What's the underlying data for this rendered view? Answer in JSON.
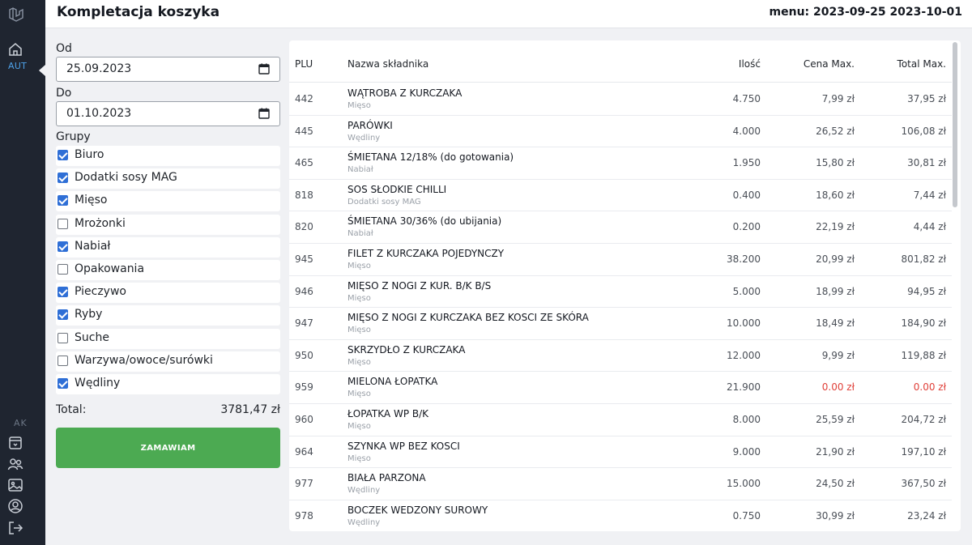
{
  "sidebar": {
    "top_section": "AUT",
    "bottom_section": "AK",
    "icons": [
      "logo-icon",
      "home-icon",
      "archive-icon",
      "users-icon",
      "image-icon",
      "profile-icon",
      "logout-icon"
    ]
  },
  "header": {
    "title": "Kompletacja koszyka",
    "menu_range": "menu: 2023-09-25 2023-10-01"
  },
  "filters": {
    "from_label": "Od",
    "from_value": "25.09.2023",
    "to_label": "Do",
    "to_value": "01.10.2023",
    "groups_label": "Grupy",
    "groups": [
      {
        "label": "Biuro",
        "checked": true
      },
      {
        "label": "Dodatki sosy MAG",
        "checked": true
      },
      {
        "label": "Mięso",
        "checked": true
      },
      {
        "label": "Mrożonki",
        "checked": false
      },
      {
        "label": "Nabiał",
        "checked": true
      },
      {
        "label": "Opakowania",
        "checked": false
      },
      {
        "label": "Pieczywo",
        "checked": true
      },
      {
        "label": "Ryby",
        "checked": true
      },
      {
        "label": "Suche",
        "checked": false
      },
      {
        "label": "Warzywa/owoce/surówki",
        "checked": false
      },
      {
        "label": "Wędliny",
        "checked": true
      }
    ],
    "total_label": "Total:",
    "total_value": "3781,47 zł",
    "order_button": "ZAMAWIAM"
  },
  "table": {
    "headers": {
      "plu": "PLU",
      "name": "Nazwa składnika",
      "qty": "Ilość",
      "price": "Cena Max.",
      "total": "Total Max."
    },
    "rows": [
      {
        "plu": "442",
        "name": "WĄTROBA Z KURCZAKA",
        "group": "Mięso",
        "qty": "4.750",
        "price": "7,99 zł",
        "total": "37,95 zł"
      },
      {
        "plu": "445",
        "name": "PARÓWKI",
        "group": "Wędliny",
        "qty": "4.000",
        "price": "26,52 zł",
        "total": "106,08 zł"
      },
      {
        "plu": "465",
        "name": "ŚMIETANA 12/18% (do gotowania)",
        "group": "Nabiał",
        "qty": "1.950",
        "price": "15,80 zł",
        "total": "30,81 zł"
      },
      {
        "plu": "818",
        "name": "SOS SŁODKIE CHILLI",
        "group": "Dodatki sosy MAG",
        "qty": "0.400",
        "price": "18,60 zł",
        "total": "7,44 zł"
      },
      {
        "plu": "820",
        "name": "ŚMIETANA 30/36% (do ubijania)",
        "group": "Nabiał",
        "qty": "0.200",
        "price": "22,19 zł",
        "total": "4,44 zł"
      },
      {
        "plu": "945",
        "name": "FILET Z KURCZAKA POJEDYNCZY",
        "group": "Mięso",
        "qty": "38.200",
        "price": "20,99 zł",
        "total": "801,82 zł"
      },
      {
        "plu": "946",
        "name": "MIĘSO Z NOGI Z KUR. B/K B/S",
        "group": "Mięso",
        "qty": "5.000",
        "price": "18,99 zł",
        "total": "94,95 zł"
      },
      {
        "plu": "947",
        "name": "MIĘSO Z NOGI Z KURCZAKA BEZ KOSCI ZE SKÓRA",
        "group": "Mięso",
        "qty": "10.000",
        "price": "18,49 zł",
        "total": "184,90 zł"
      },
      {
        "plu": "950",
        "name": "SKRZYDŁO Z KURCZAKA",
        "group": "Mięso",
        "qty": "12.000",
        "price": "9,99 zł",
        "total": "119,88 zł"
      },
      {
        "plu": "959",
        "name": "MIELONA ŁOPATKA",
        "group": "Mięso",
        "qty": "21.900",
        "price": "0.00 zł",
        "total": "0.00 zł",
        "zero": true
      },
      {
        "plu": "960",
        "name": "ŁOPATKA WP B/K",
        "group": "Mięso",
        "qty": "8.000",
        "price": "25,59 zł",
        "total": "204,72 zł"
      },
      {
        "plu": "964",
        "name": "SZYNKA WP BEZ KOSCI",
        "group": "Mięso",
        "qty": "9.000",
        "price": "21,90 zł",
        "total": "197,10 zł"
      },
      {
        "plu": "977",
        "name": "BIAŁA PARZONA",
        "group": "Wędliny",
        "qty": "15.000",
        "price": "24,50 zł",
        "total": "367,50 zł"
      },
      {
        "plu": "978",
        "name": "BOCZEK WEDZONY SUROWY",
        "group": "Wędliny",
        "qty": "0.750",
        "price": "30,99 zł",
        "total": "23,24 zł"
      }
    ]
  },
  "colors": {
    "accent": "#2f6fd6",
    "order_button": "#4caa52",
    "zero_value": "#e0413a",
    "sidebar": "#1f2530"
  }
}
